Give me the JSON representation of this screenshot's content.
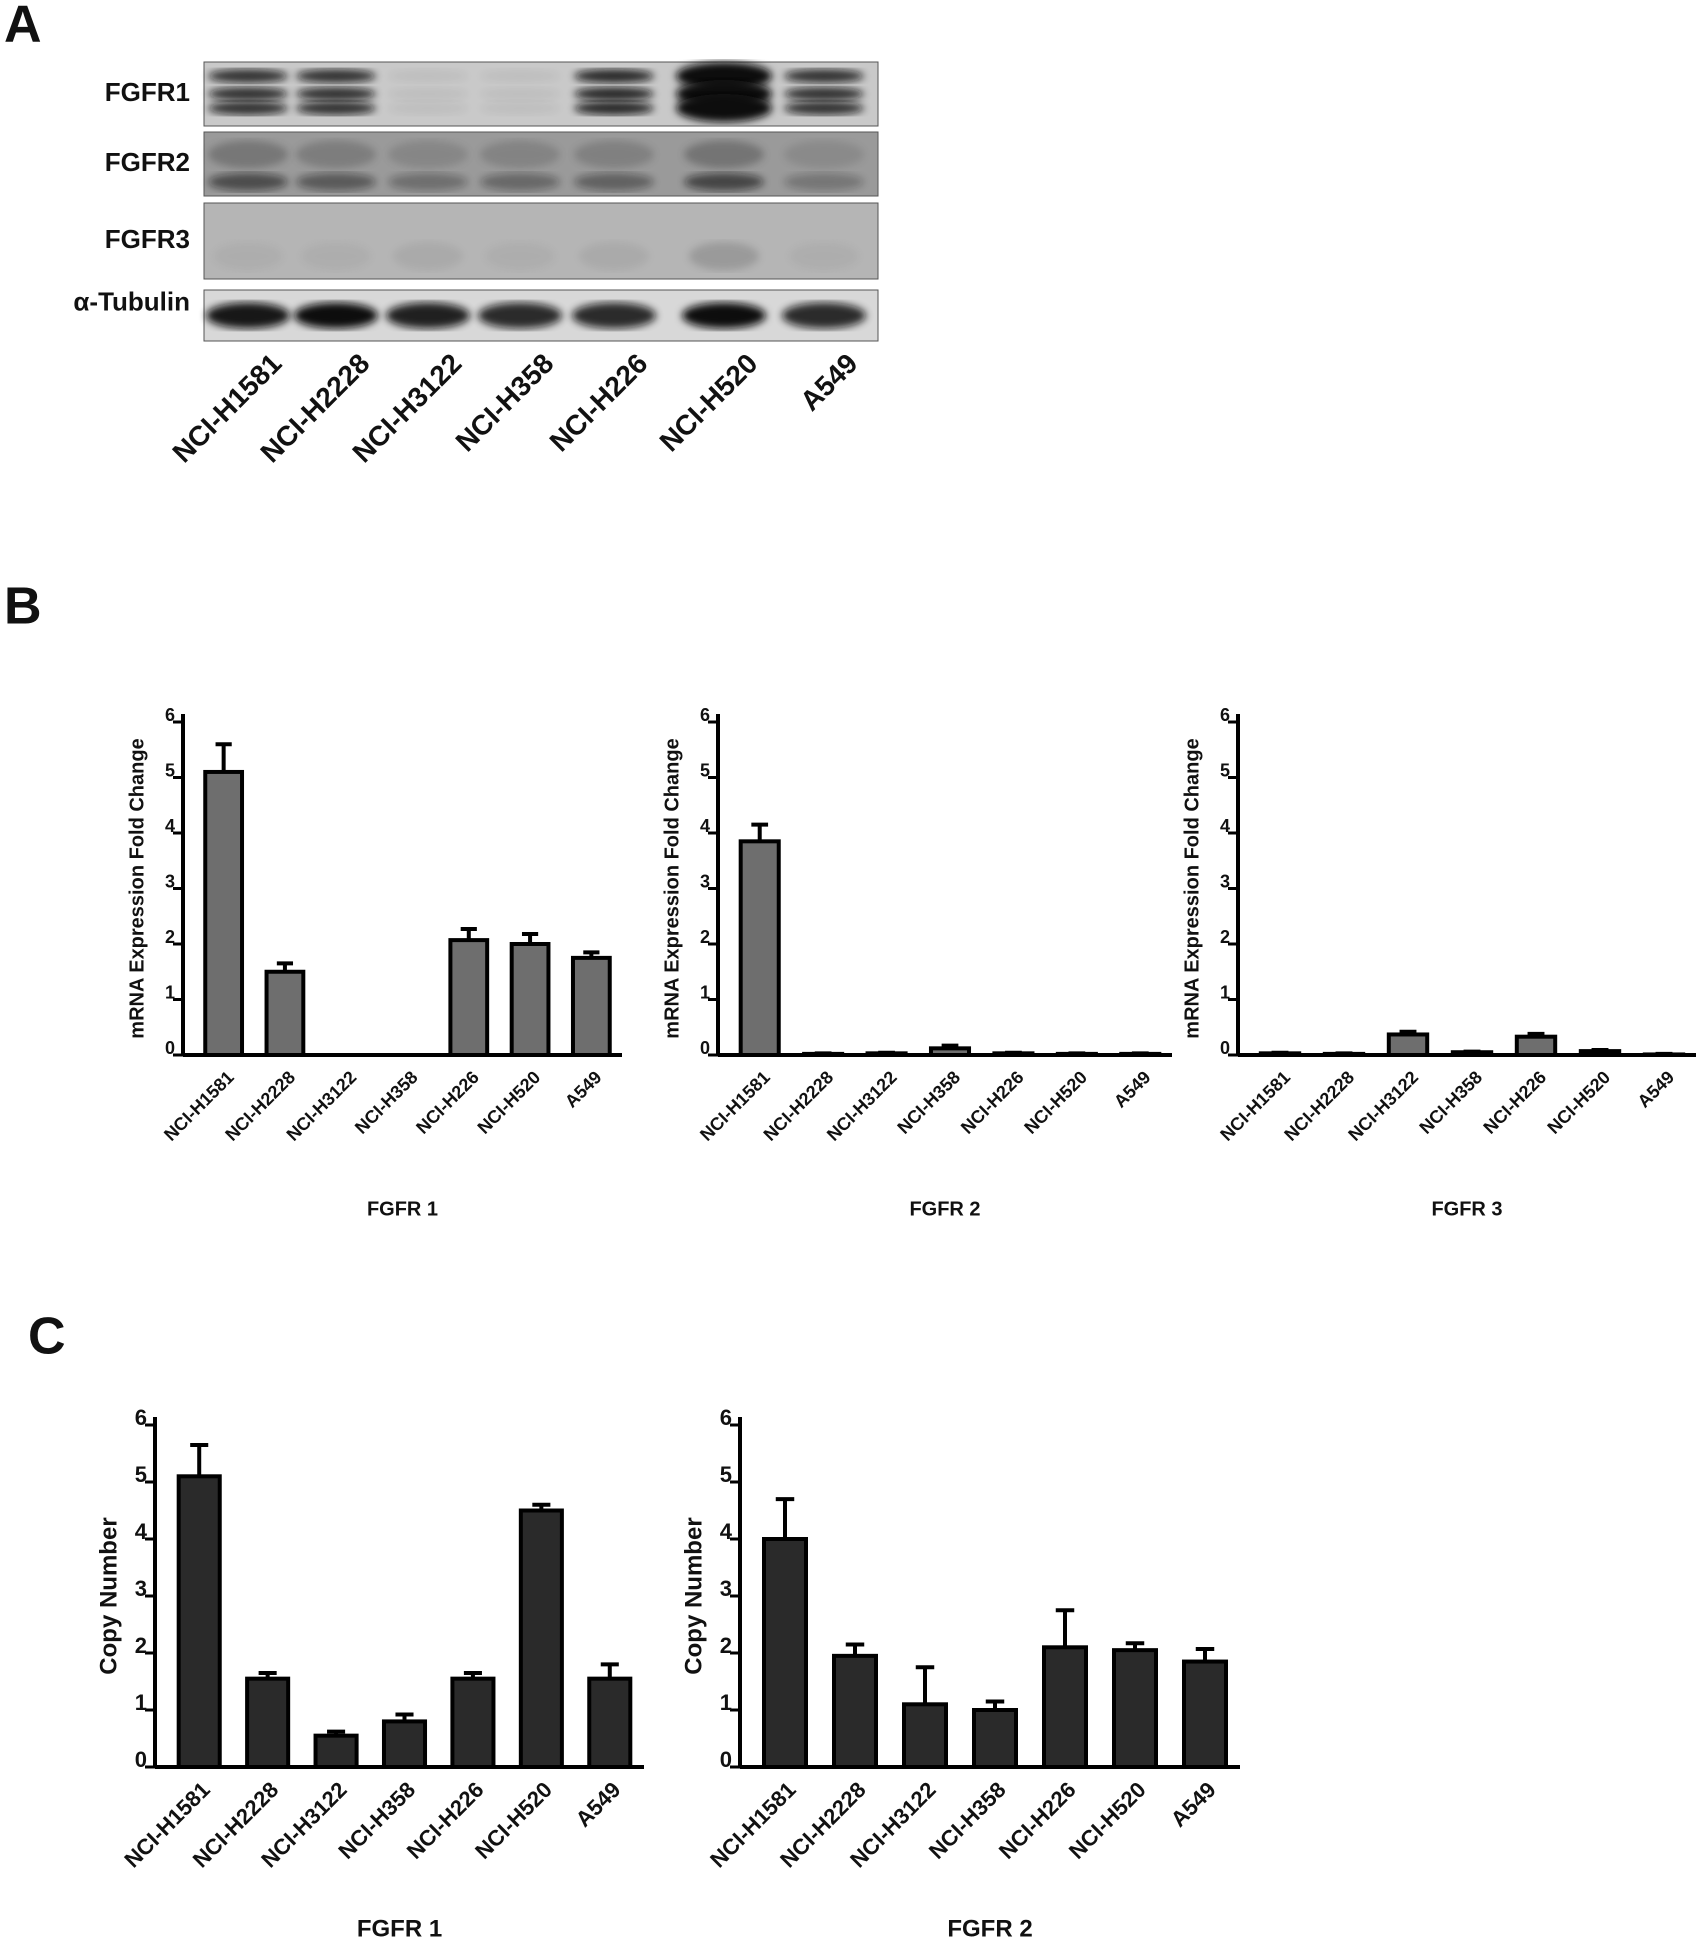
{
  "panels": [
    "A",
    "B",
    "C"
  ],
  "blot": {
    "rows": [
      "FGFR1",
      "FGFR2",
      "FGFR3",
      "α-Tubulin"
    ],
    "lanes": [
      "NCI-H1581",
      "NCI-H2228",
      "NCI-H3122",
      "NCI-H358",
      "NCI-H226",
      "NCI-H520",
      "A549"
    ]
  },
  "chart_data": [
    {
      "type": "bar",
      "title": "FGFR 1",
      "y_label": "mRNA Expression Fold Change",
      "categories": [
        "NCI-H1581",
        "NCI-H2228",
        "NCI-H3122",
        "NCI-H358",
        "NCI-H226",
        "NCI-H520",
        "A549"
      ],
      "values": [
        5.1,
        1.5,
        0,
        0,
        2.07,
        2.0,
        1.75
      ],
      "errors": [
        0.5,
        0.15,
        0,
        0,
        0.2,
        0.18,
        0.1
      ],
      "color": "#6e6e6e",
      "ylim": [
        0,
        6
      ],
      "yticks": [
        0,
        1,
        2,
        3,
        4,
        5,
        6
      ]
    },
    {
      "type": "bar",
      "title": "FGFR 2",
      "y_label": "mRNA Expression Fold Change",
      "categories": [
        "NCI-H1581",
        "NCI-H2228",
        "NCI-H3122",
        "NCI-H358",
        "NCI-H226",
        "NCI-H520",
        "A549"
      ],
      "values": [
        3.85,
        0.02,
        0.03,
        0.12,
        0.03,
        0.02,
        0.02
      ],
      "errors": [
        0.3,
        0.01,
        0.01,
        0.05,
        0.01,
        0.01,
        0.01
      ],
      "color": "#6e6e6e",
      "ylim": [
        0,
        6
      ],
      "yticks": [
        0,
        1,
        2,
        3,
        4,
        5,
        6
      ]
    },
    {
      "type": "bar",
      "title": "FGFR 3",
      "y_label": "mRNA Expression Fold Change",
      "categories": [
        "NCI-H1581",
        "NCI-H2228",
        "NCI-H3122",
        "NCI-H358",
        "NCI-H226",
        "NCI-H520",
        "A549"
      ],
      "values": [
        0.03,
        0.02,
        0.37,
        0.05,
        0.33,
        0.07,
        0.01
      ],
      "errors": [
        0.01,
        0.01,
        0.05,
        0.01,
        0.05,
        0.02,
        0.01
      ],
      "color": "#6e6e6e",
      "ylim": [
        0,
        6
      ],
      "yticks": [
        0,
        1,
        2,
        3,
        4,
        5,
        6
      ]
    },
    {
      "type": "bar",
      "title": "FGFR 1",
      "y_label": "Copy Number",
      "categories": [
        "NCI-H1581",
        "NCI-H2228",
        "NCI-H3122",
        "NCI-H358",
        "NCI-H226",
        "NCI-H520",
        "A549"
      ],
      "values": [
        5.1,
        1.55,
        0.55,
        0.8,
        1.55,
        4.5,
        1.55
      ],
      "errors": [
        0.55,
        0.1,
        0.07,
        0.12,
        0.1,
        0.1,
        0.25
      ],
      "color": "#2a2a2a",
      "ylim": [
        0,
        6
      ],
      "yticks": [
        0,
        1,
        2,
        3,
        4,
        5,
        6
      ]
    },
    {
      "type": "bar",
      "title": "FGFR 2",
      "y_label": "Copy Number",
      "categories": [
        "NCI-H1581",
        "NCI-H2228",
        "NCI-H3122",
        "NCI-H358",
        "NCI-H226",
        "NCI-H520",
        "A549"
      ],
      "values": [
        4.0,
        1.95,
        1.1,
        1.0,
        2.1,
        2.05,
        1.85
      ],
      "errors": [
        0.7,
        0.2,
        0.65,
        0.15,
        0.65,
        0.12,
        0.22
      ],
      "color": "#2a2a2a",
      "ylim": [
        0,
        6
      ],
      "yticks": [
        0,
        1,
        2,
        3,
        4,
        5,
        6
      ]
    }
  ]
}
